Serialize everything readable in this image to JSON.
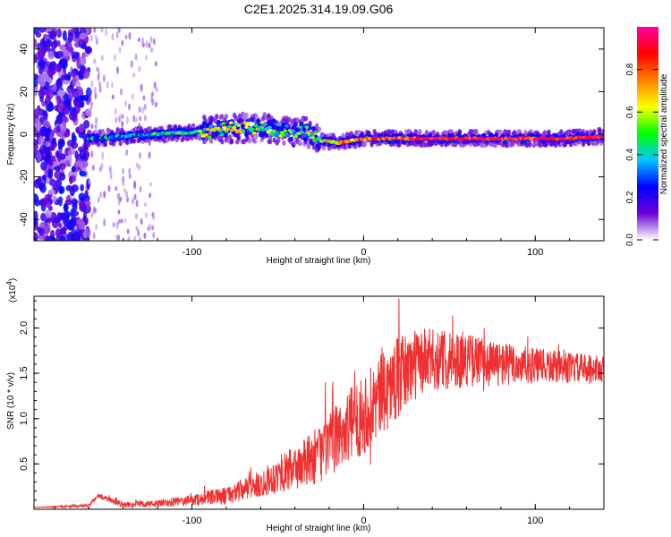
{
  "title": "C2E1.2025.314.19.09.G06",
  "chart_data": [
    {
      "type": "heatmap",
      "xlabel": "Height of straight line (km)",
      "ylabel": "Frequency (Hz)",
      "xlim": [
        -192,
        140
      ],
      "ylim": [
        -50,
        50
      ],
      "xticks": [
        -100,
        0,
        100
      ],
      "xtick_labels": [
        "-100",
        "0",
        "100"
      ],
      "yticks": [
        -40,
        -20,
        0,
        20,
        40
      ],
      "ytick_labels": [
        "-40",
        "-20",
        "0",
        "20",
        "40"
      ],
      "colorbar": {
        "label": "Normalized spectral amplitude",
        "range": [
          0,
          1
        ],
        "ticks": [
          0.0,
          0.2,
          0.4,
          0.6,
          0.8
        ],
        "tick_labels": [
          "0.0",
          "0.2",
          "0.4",
          "0.6",
          "0.8"
        ],
        "colors": [
          "#ffffff",
          "#6a00d8",
          "#0000ff",
          "#00c8ff",
          "#00ff00",
          "#ffff00",
          "#ff8000",
          "#ff0000",
          "#ff00a0"
        ]
      },
      "ridge": {
        "x": [
          -160,
          -140,
          -120,
          -100,
          -85,
          -70,
          -55,
          -45,
          -35,
          -25,
          -15,
          0,
          20,
          40,
          60,
          80,
          100,
          120,
          140
        ],
        "freq": [
          -2,
          -1,
          0,
          1,
          2,
          3,
          3,
          1,
          2,
          -3,
          -4,
          -2,
          -2,
          -2,
          -2,
          -2,
          -2,
          -2,
          -1
        ],
        "amplitude": [
          0.3,
          0.35,
          0.4,
          0.5,
          0.55,
          0.55,
          0.5,
          0.5,
          0.45,
          0.55,
          0.7,
          0.8,
          0.85,
          0.9,
          0.9,
          0.9,
          0.9,
          0.9,
          0.85
        ]
      },
      "noise_region": {
        "x_from": -192,
        "x_to": -160,
        "amplitude": 0.25
      }
    },
    {
      "type": "line",
      "xlabel": "Height of straight line (km)",
      "ylabel": "SNR (10 * v/v)",
      "y_multiplier": "(x10^4)",
      "xlim": [
        -192,
        140
      ],
      "ylim": [
        0,
        2.35
      ],
      "xticks": [
        -100,
        0,
        100
      ],
      "xtick_labels": [
        "-100",
        "0",
        "100"
      ],
      "yticks": [
        0.5,
        1.0,
        1.5,
        2.0
      ],
      "ytick_labels": [
        "0.5",
        "1.0",
        "1.5",
        "2.0"
      ],
      "series": [
        {
          "name": "SNR",
          "color": "#f03030",
          "trend_x": [
            -192,
            -160,
            -155,
            -140,
            -120,
            -100,
            -80,
            -60,
            -50,
            -40,
            -30,
            -20,
            -10,
            0,
            10,
            20,
            30,
            40,
            60,
            80,
            100,
            120,
            140
          ],
          "trend_y": [
            0.02,
            0.04,
            0.15,
            0.05,
            0.06,
            0.1,
            0.15,
            0.28,
            0.38,
            0.45,
            0.55,
            0.7,
            0.9,
            1.05,
            1.25,
            1.45,
            1.6,
            1.65,
            1.65,
            1.6,
            1.58,
            1.56,
            1.55
          ],
          "noise_amplitude": [
            0.0,
            0.02,
            0.03,
            0.03,
            0.04,
            0.06,
            0.1,
            0.15,
            0.2,
            0.25,
            0.3,
            0.35,
            0.4,
            0.45,
            0.45,
            0.45,
            0.4,
            0.35,
            0.3,
            0.25,
            0.2,
            0.17,
            0.15
          ]
        }
      ]
    }
  ]
}
